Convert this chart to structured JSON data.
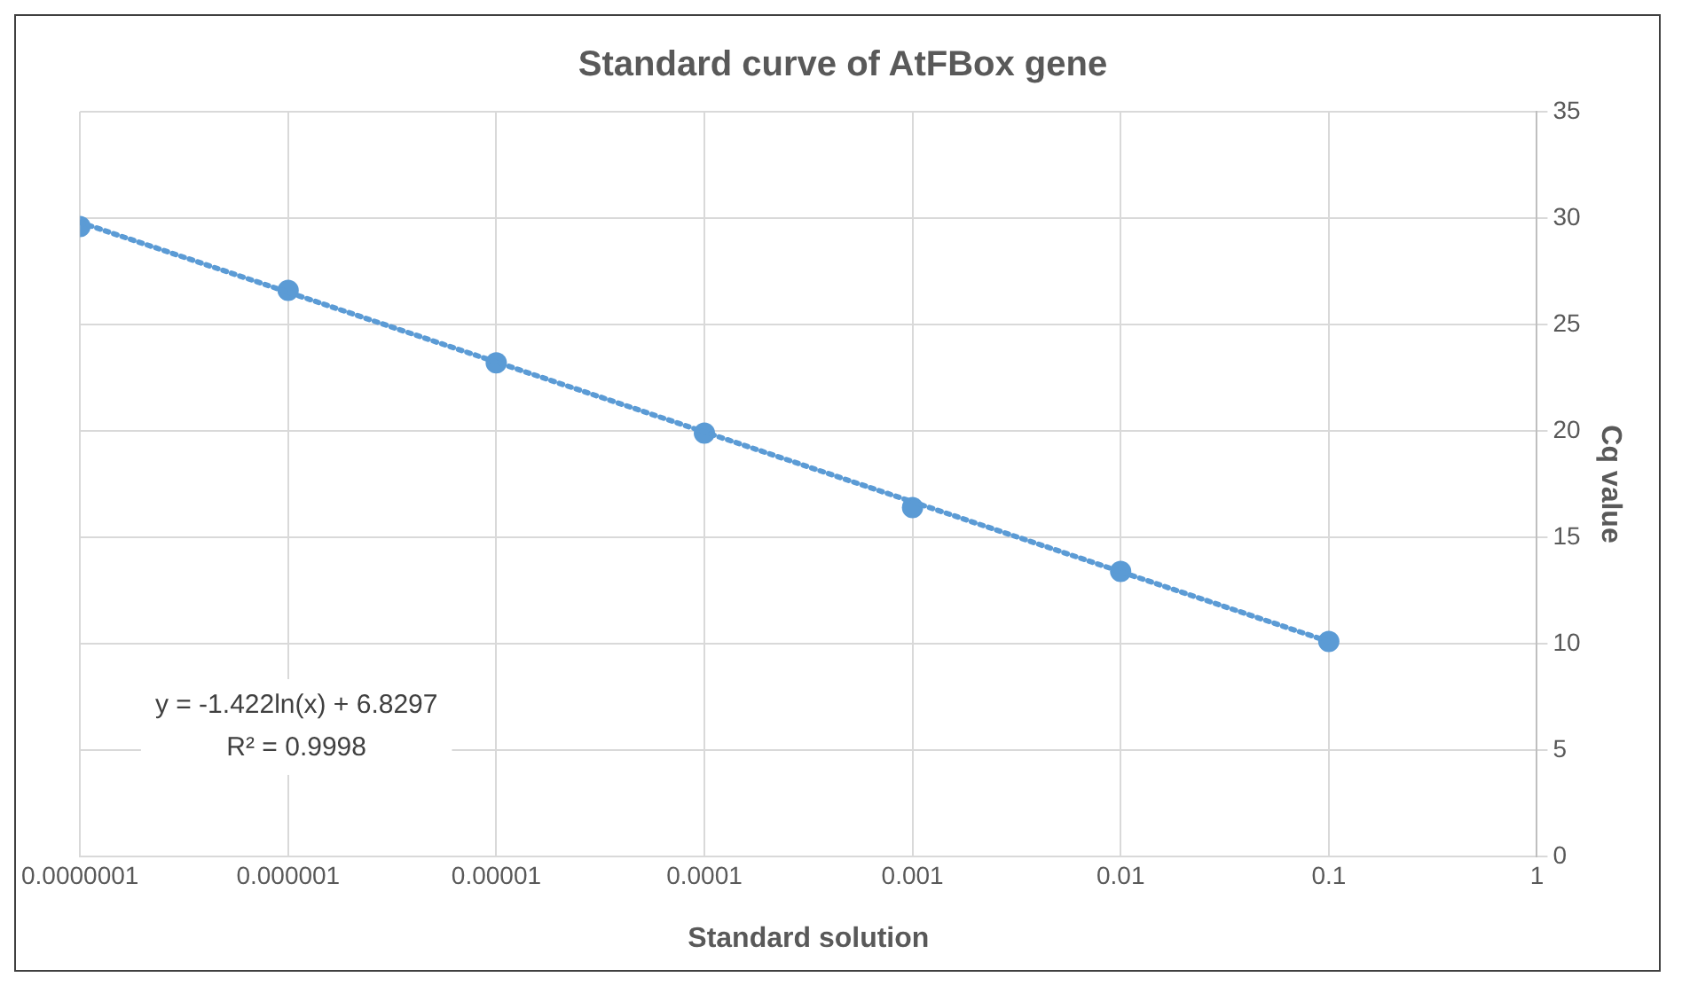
{
  "chart_data": {
    "type": "scatter",
    "title": "Standard curve of AtFBox gene",
    "xlabel": "Standard solution",
    "ylabel": "Cq value",
    "log": "x",
    "grid": true,
    "legend": false,
    "xlim": [
      1e-07,
      1
    ],
    "xticks": [
      {
        "value": 1e-07,
        "label": "0.0000001"
      },
      {
        "value": 1e-06,
        "label": "0.000001"
      },
      {
        "value": 1e-05,
        "label": "0.00001"
      },
      {
        "value": 0.0001,
        "label": "0.0001"
      },
      {
        "value": 0.001,
        "label": "0.001"
      },
      {
        "value": 0.01,
        "label": "0.01"
      },
      {
        "value": 0.1,
        "label": "0.1"
      },
      {
        "value": 1,
        "label": "1"
      }
    ],
    "ylim": [
      0,
      35
    ],
    "yticks": [
      0,
      5,
      10,
      15,
      20,
      25,
      30,
      35
    ],
    "series": [
      {
        "type": "line",
        "color": "#5b9bd5",
        "line_style": "dotted",
        "marker": "none",
        "x": [
          1e-07,
          0.1
        ],
        "values": [
          29.8,
          10.1
        ]
      },
      {
        "color": "#5b9bd5",
        "marker": "circle",
        "x": [
          1e-07,
          1e-06,
          1e-05,
          0.0001,
          0.001,
          0.01,
          0.1
        ],
        "values": [
          29.6,
          26.6,
          23.2,
          19.9,
          16.4,
          13.4,
          10.1
        ]
      }
    ],
    "annotations": [
      "y = -1.422ln(x) + 6.8297",
      "R² = 0.9998"
    ]
  }
}
